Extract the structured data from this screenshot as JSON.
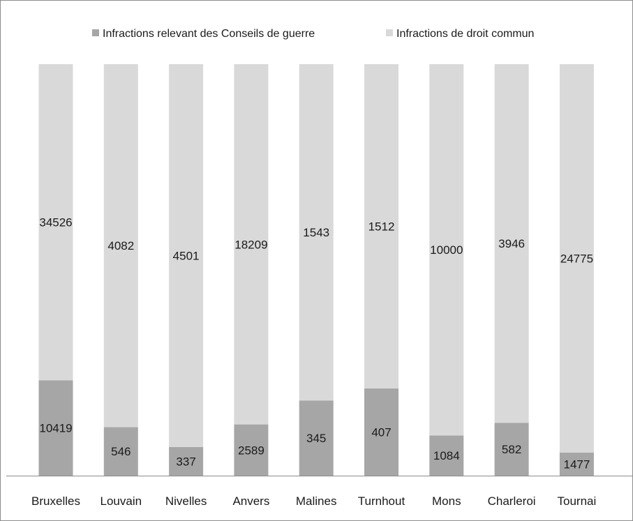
{
  "chart_data": {
    "type": "bar",
    "stacked": "percent",
    "categories": [
      "Bruxelles",
      "Louvain",
      "Nivelles",
      "Anvers",
      "Malines",
      "Turnhout",
      "Mons",
      "Charleroi",
      "Tournai"
    ],
    "series": [
      {
        "name": "Infractions relevant des Conseils de guerre",
        "color": "#a6a6a6",
        "values": [
          10419,
          546,
          337,
          2589,
          345,
          407,
          1084,
          582,
          1477
        ]
      },
      {
        "name": "Infractions de droit commun",
        "color": "#d9d9d9",
        "values": [
          34526,
          4082,
          4501,
          18209,
          1543,
          1512,
          10000,
          3946,
          24775
        ]
      }
    ],
    "legend_position": "top",
    "grid": false,
    "show_value_axis": false,
    "axis_color": "#8c8c8c"
  }
}
